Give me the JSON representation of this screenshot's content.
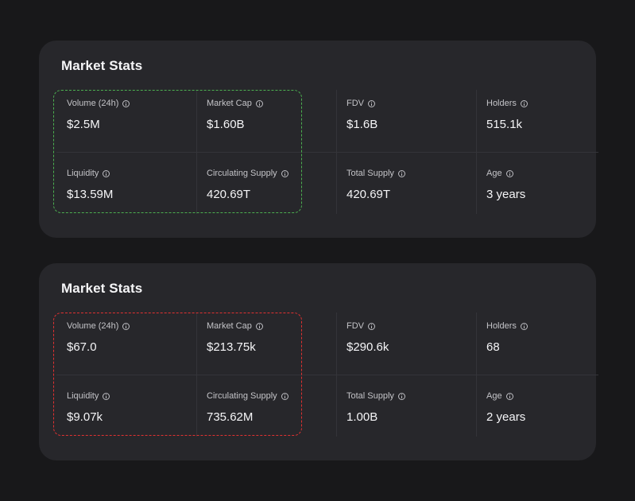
{
  "cards": [
    {
      "title": "Market Stats",
      "highlight_color": "#4caf50",
      "stats": [
        {
          "label": "Volume (24h)",
          "value": "$2.5M"
        },
        {
          "label": "Market Cap",
          "value": "$1.60B"
        },
        {
          "label": "FDV",
          "value": "$1.6B"
        },
        {
          "label": "Holders",
          "value": "515.1k"
        },
        {
          "label": "Liquidity",
          "value": "$13.59M"
        },
        {
          "label": "Circulating Supply",
          "value": "420.69T"
        },
        {
          "label": "Total Supply",
          "value": "420.69T"
        },
        {
          "label": "Age",
          "value": "3 years"
        }
      ]
    },
    {
      "title": "Market Stats",
      "highlight_color": "#e03131",
      "stats": [
        {
          "label": "Volume (24h)",
          "value": "$67.0"
        },
        {
          "label": "Market Cap",
          "value": "$213.75k"
        },
        {
          "label": "FDV",
          "value": "$290.6k"
        },
        {
          "label": "Holders",
          "value": "68"
        },
        {
          "label": "Liquidity",
          "value": "$9.07k"
        },
        {
          "label": "Circulating Supply",
          "value": "735.62M"
        },
        {
          "label": "Total Supply",
          "value": "1.00B"
        },
        {
          "label": "Age",
          "value": "2 years"
        }
      ]
    }
  ],
  "icons": {
    "info": "info-circle-icon"
  }
}
